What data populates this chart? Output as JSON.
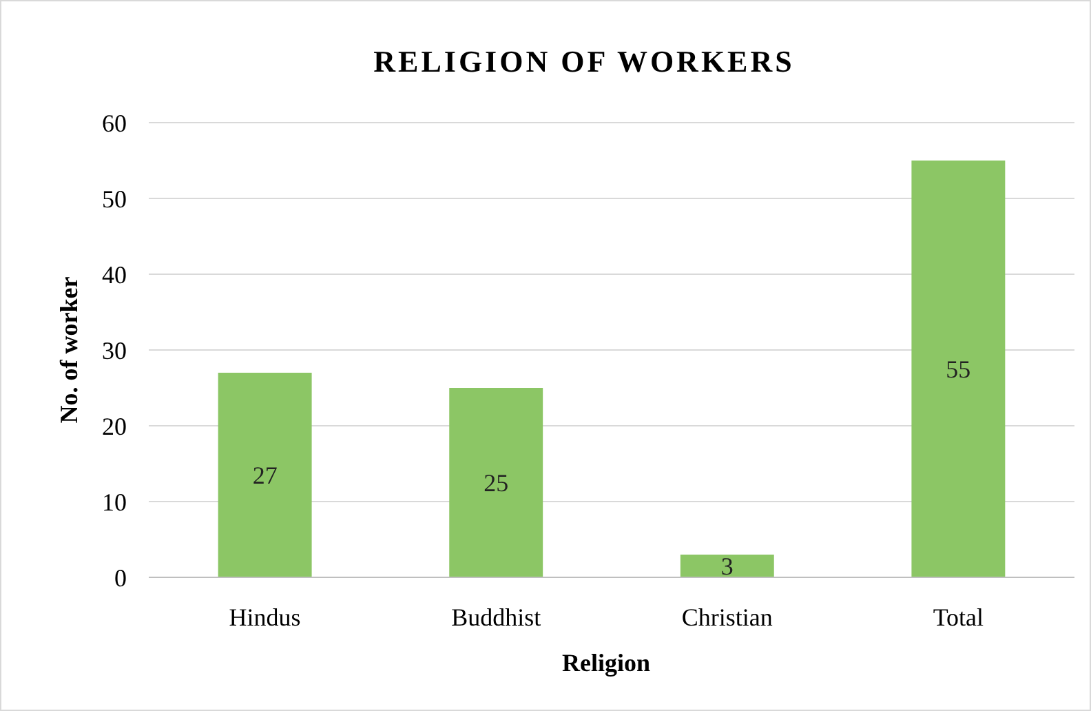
{
  "chart_data": {
    "type": "bar",
    "title": "RELIGION OF WORKERS",
    "xlabel": "Religion",
    "ylabel": "No. of worker",
    "categories": [
      "Hindus",
      "Buddhist",
      "Christian",
      "Total"
    ],
    "values": [
      27,
      25,
      3,
      55
    ],
    "color": "#8cc665",
    "ylim": [
      0,
      60
    ],
    "yticks": [
      0,
      10,
      20,
      30,
      40,
      50,
      60
    ],
    "grid": "y",
    "data_labels": true
  }
}
